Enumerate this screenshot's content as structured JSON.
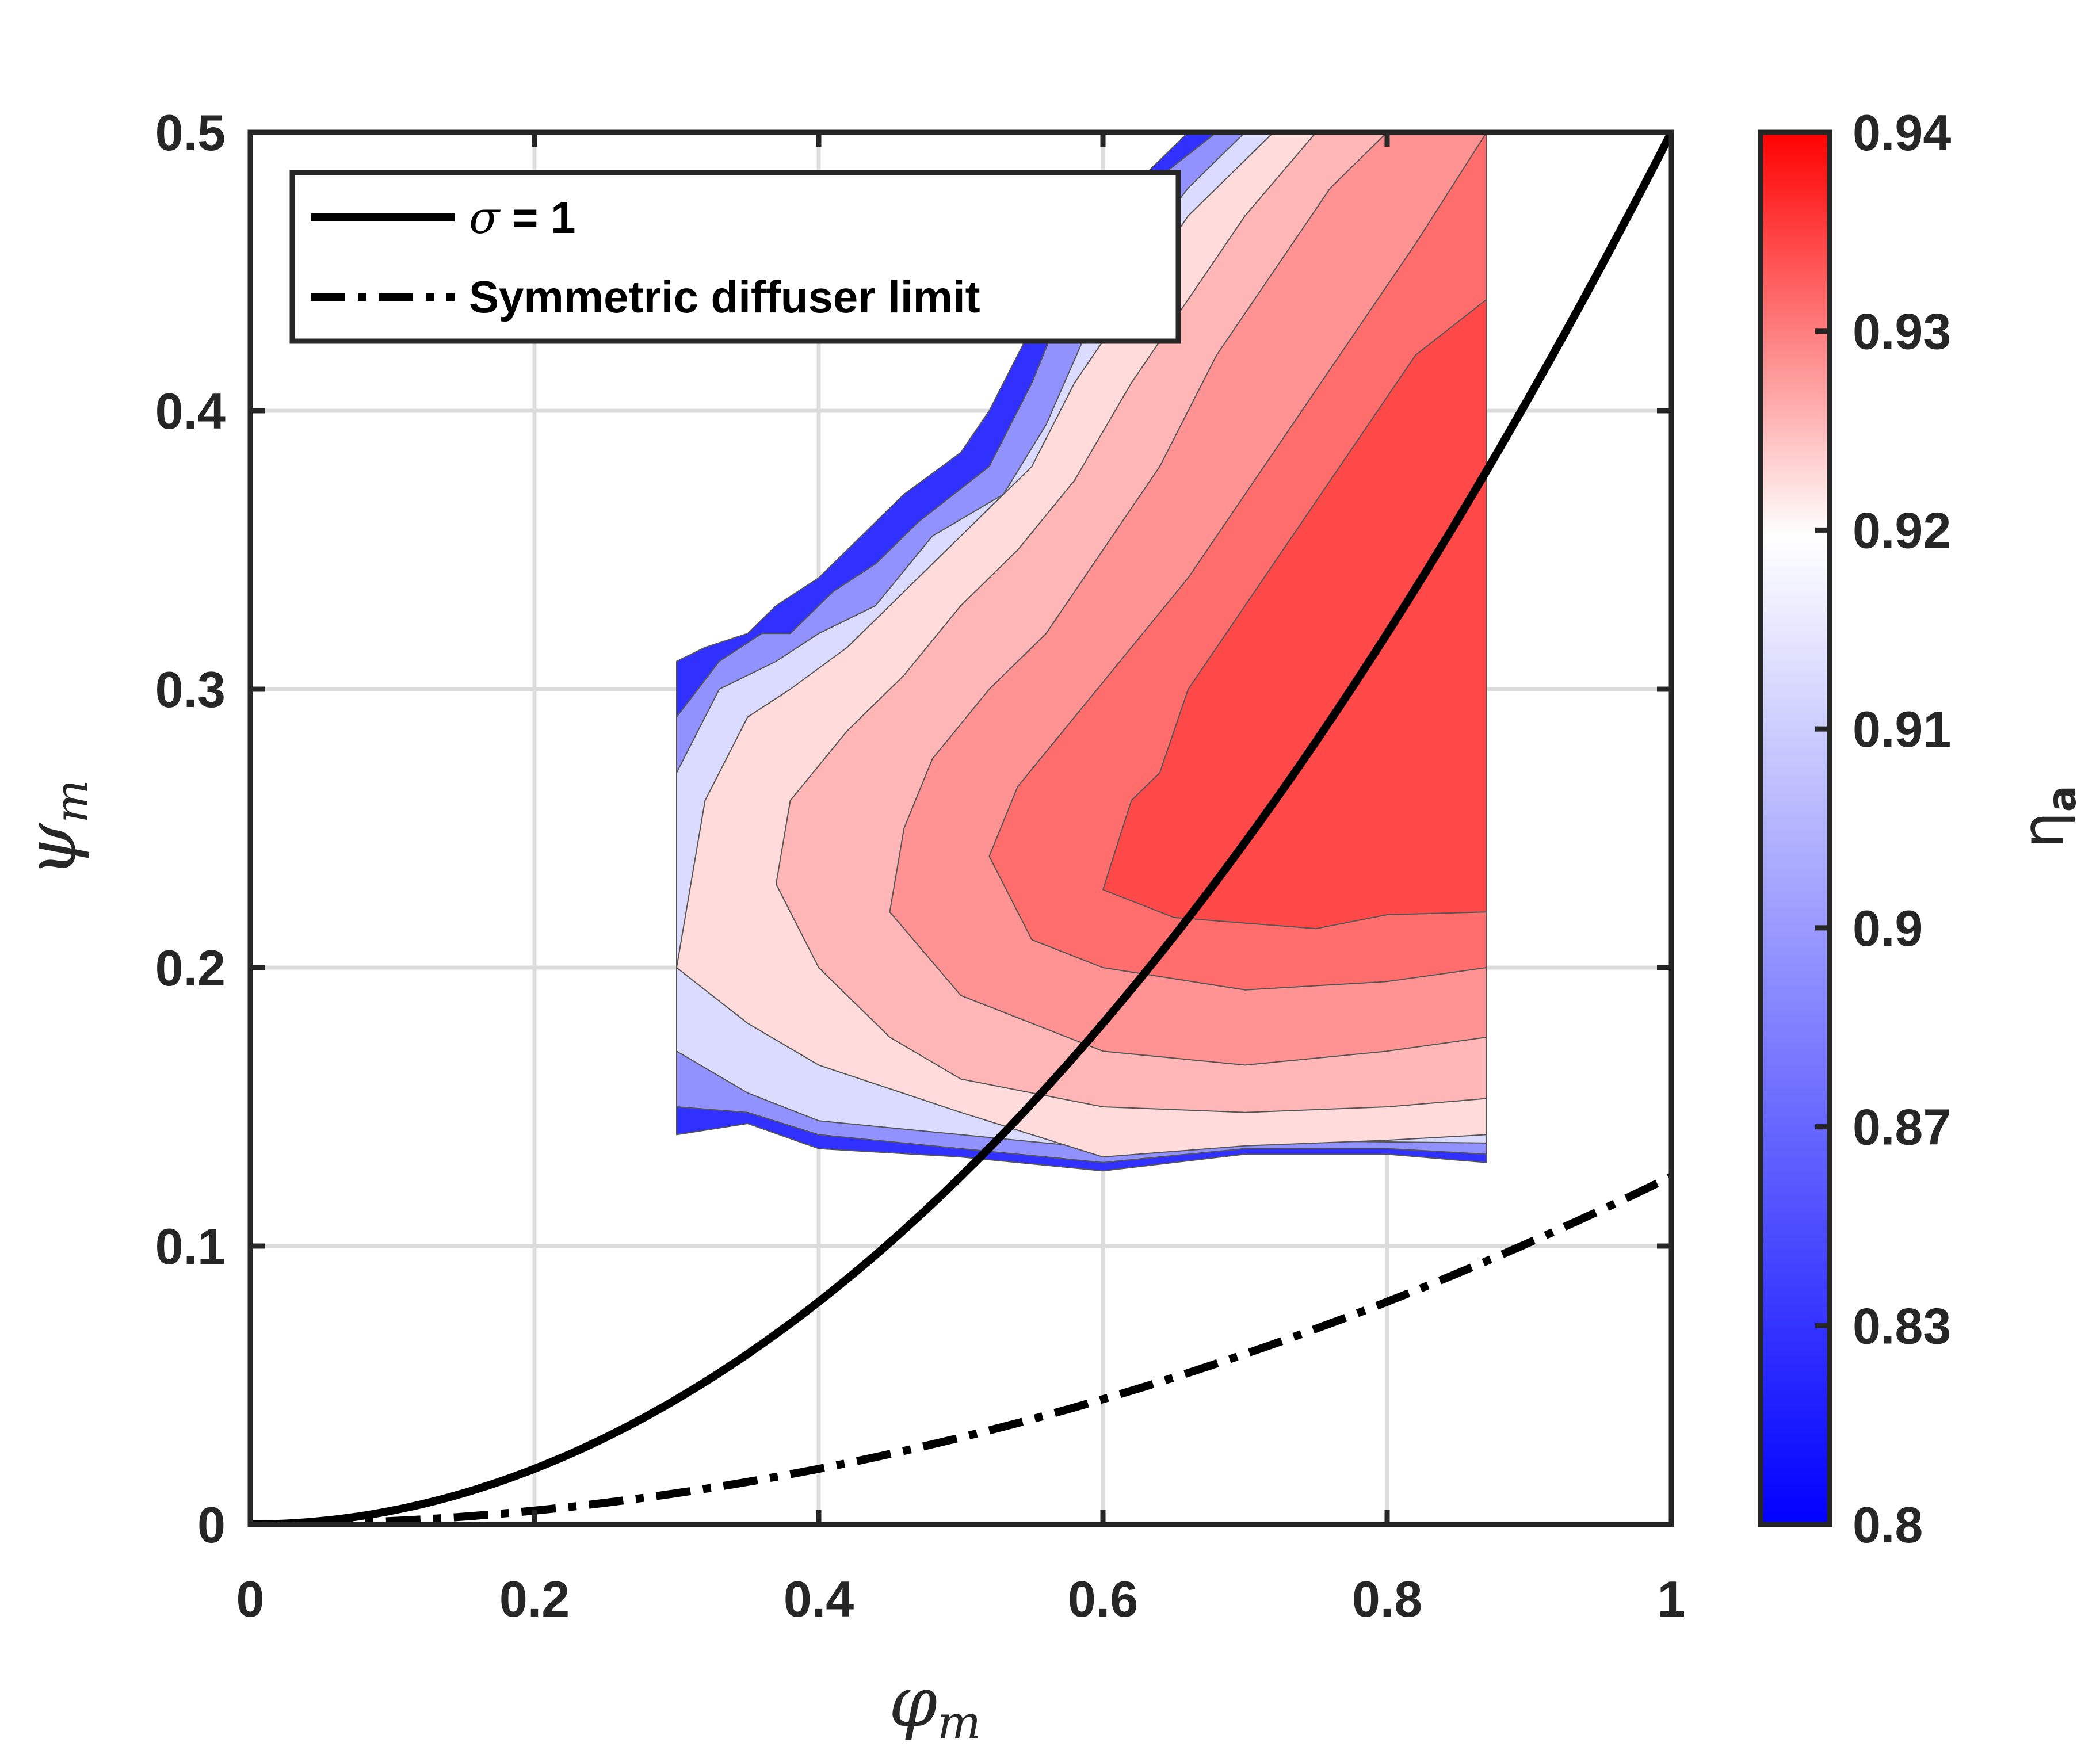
{
  "chart_data": {
    "type": "contour",
    "xlabel": {
      "main": "φ",
      "sub": "m"
    },
    "ylabel": {
      "main": "ψ",
      "sub": "m"
    },
    "xlim": [
      0,
      1
    ],
    "ylim": [
      0,
      0.5
    ],
    "xticks": [
      "0",
      "0.2",
      "0.4",
      "0.6",
      "0.8",
      "1"
    ],
    "yticks": [
      "0",
      "0.1",
      "0.2",
      "0.3",
      "0.4",
      "0.5"
    ],
    "grid": true,
    "legend": {
      "placement": "top-left",
      "entries": [
        {
          "symbol": "σ",
          "text": " = 1",
          "style": "solid"
        },
        {
          "symbol": "",
          "text": "Symmetric diffuser limit",
          "style": "dash-dot"
        }
      ]
    },
    "series": [
      {
        "style": "solid",
        "formula": "y = 0.5 * x^2"
      },
      {
        "style": "dash-dot",
        "formula": "y = 0.125 * x^2"
      }
    ],
    "colorbar": {
      "label": {
        "main": "η",
        "sub": "a"
      },
      "range": [
        0.8,
        0.94
      ],
      "ticks": [
        "0.8",
        "0.83",
        "0.87",
        "0.9",
        "0.91",
        "0.92",
        "0.93",
        "0.94"
      ],
      "colors": {
        "low": "#0000ff",
        "mid": "#ffffff",
        "high": "#ff0000"
      }
    },
    "contour_regions": [
      {
        "eta": 0.82,
        "outline": [
          [
            0.3,
            0.31
          ],
          [
            0.32,
            0.315
          ],
          [
            0.35,
            0.32
          ],
          [
            0.37,
            0.33
          ],
          [
            0.4,
            0.34
          ],
          [
            0.43,
            0.355
          ],
          [
            0.46,
            0.37
          ],
          [
            0.5,
            0.385
          ],
          [
            0.52,
            0.4
          ],
          [
            0.54,
            0.42
          ],
          [
            0.57,
            0.45
          ],
          [
            0.6,
            0.47
          ],
          [
            0.63,
            0.485
          ],
          [
            0.66,
            0.5
          ],
          [
            0.87,
            0.5
          ],
          [
            0.87,
            0.13
          ],
          [
            0.8,
            0.133
          ],
          [
            0.7,
            0.133
          ],
          [
            0.6,
            0.127
          ],
          [
            0.5,
            0.132
          ],
          [
            0.4,
            0.135
          ],
          [
            0.35,
            0.144
          ],
          [
            0.3,
            0.14
          ]
        ]
      },
      {
        "eta": 0.86,
        "outline": [
          [
            0.3,
            0.29
          ],
          [
            0.33,
            0.31
          ],
          [
            0.36,
            0.32
          ],
          [
            0.38,
            0.32
          ],
          [
            0.41,
            0.335
          ],
          [
            0.44,
            0.345
          ],
          [
            0.47,
            0.36
          ],
          [
            0.52,
            0.38
          ],
          [
            0.55,
            0.41
          ],
          [
            0.57,
            0.435
          ],
          [
            0.6,
            0.455
          ],
          [
            0.63,
            0.48
          ],
          [
            0.68,
            0.5
          ],
          [
            0.87,
            0.5
          ],
          [
            0.87,
            0.133
          ],
          [
            0.8,
            0.135
          ],
          [
            0.7,
            0.135
          ],
          [
            0.6,
            0.13
          ],
          [
            0.5,
            0.135
          ],
          [
            0.4,
            0.14
          ],
          [
            0.35,
            0.148
          ],
          [
            0.3,
            0.15
          ]
        ]
      },
      {
        "eta": 0.89,
        "outline": [
          [
            0.3,
            0.27
          ],
          [
            0.33,
            0.3
          ],
          [
            0.37,
            0.31
          ],
          [
            0.4,
            0.32
          ],
          [
            0.44,
            0.33
          ],
          [
            0.48,
            0.355
          ],
          [
            0.53,
            0.37
          ],
          [
            0.56,
            0.395
          ],
          [
            0.59,
            0.43
          ],
          [
            0.63,
            0.46
          ],
          [
            0.66,
            0.48
          ],
          [
            0.7,
            0.5
          ],
          [
            0.87,
            0.5
          ],
          [
            0.87,
            0.137
          ],
          [
            0.7,
            0.138
          ],
          [
            0.6,
            0.135
          ],
          [
            0.5,
            0.14
          ],
          [
            0.4,
            0.145
          ],
          [
            0.35,
            0.155
          ],
          [
            0.3,
            0.17
          ]
        ]
      },
      {
        "eta": 0.91,
        "outline": [
          [
            0.3,
            0.2
          ],
          [
            0.32,
            0.26
          ],
          [
            0.35,
            0.29
          ],
          [
            0.38,
            0.3
          ],
          [
            0.42,
            0.315
          ],
          [
            0.47,
            0.34
          ],
          [
            0.51,
            0.36
          ],
          [
            0.55,
            0.38
          ],
          [
            0.58,
            0.41
          ],
          [
            0.62,
            0.44
          ],
          [
            0.66,
            0.47
          ],
          [
            0.72,
            0.5
          ],
          [
            0.87,
            0.5
          ],
          [
            0.87,
            0.14
          ],
          [
            0.8,
            0.138
          ],
          [
            0.7,
            0.136
          ],
          [
            0.6,
            0.132
          ],
          [
            0.5,
            0.148
          ],
          [
            0.4,
            0.165
          ],
          [
            0.35,
            0.18
          ]
        ]
      },
      {
        "eta": 0.915,
        "outline": [
          [
            0.37,
            0.23
          ],
          [
            0.38,
            0.26
          ],
          [
            0.42,
            0.285
          ],
          [
            0.46,
            0.305
          ],
          [
            0.5,
            0.33
          ],
          [
            0.54,
            0.35
          ],
          [
            0.58,
            0.375
          ],
          [
            0.62,
            0.41
          ],
          [
            0.66,
            0.44
          ],
          [
            0.7,
            0.47
          ],
          [
            0.75,
            0.5
          ],
          [
            0.87,
            0.5
          ],
          [
            0.87,
            0.153
          ],
          [
            0.8,
            0.15
          ],
          [
            0.7,
            0.148
          ],
          [
            0.6,
            0.15
          ],
          [
            0.5,
            0.16
          ],
          [
            0.45,
            0.175
          ],
          [
            0.4,
            0.2
          ]
        ]
      },
      {
        "eta": 0.92,
        "outline": [
          [
            0.45,
            0.22
          ],
          [
            0.46,
            0.25
          ],
          [
            0.48,
            0.275
          ],
          [
            0.52,
            0.3
          ],
          [
            0.56,
            0.32
          ],
          [
            0.6,
            0.35
          ],
          [
            0.64,
            0.38
          ],
          [
            0.68,
            0.42
          ],
          [
            0.72,
            0.45
          ],
          [
            0.76,
            0.48
          ],
          [
            0.8,
            0.5
          ],
          [
            0.87,
            0.5
          ],
          [
            0.87,
            0.175
          ],
          [
            0.8,
            0.17
          ],
          [
            0.7,
            0.165
          ],
          [
            0.6,
            0.17
          ],
          [
            0.5,
            0.19
          ]
        ]
      },
      {
        "eta": 0.925,
        "outline": [
          [
            0.52,
            0.24
          ],
          [
            0.54,
            0.265
          ],
          [
            0.58,
            0.29
          ],
          [
            0.62,
            0.315
          ],
          [
            0.66,
            0.34
          ],
          [
            0.7,
            0.37
          ],
          [
            0.74,
            0.4
          ],
          [
            0.78,
            0.43
          ],
          [
            0.82,
            0.46
          ],
          [
            0.87,
            0.5
          ],
          [
            0.87,
            0.2
          ],
          [
            0.8,
            0.195
          ],
          [
            0.7,
            0.192
          ],
          [
            0.6,
            0.2
          ],
          [
            0.55,
            0.21
          ]
        ]
      },
      {
        "eta": 0.93,
        "outline": [
          [
            0.6,
            0.228
          ],
          [
            0.62,
            0.26
          ],
          [
            0.64,
            0.27
          ],
          [
            0.66,
            0.3
          ],
          [
            0.7,
            0.33
          ],
          [
            0.74,
            0.36
          ],
          [
            0.78,
            0.39
          ],
          [
            0.82,
            0.42
          ],
          [
            0.87,
            0.44
          ],
          [
            0.87,
            0.22
          ],
          [
            0.8,
            0.219
          ],
          [
            0.75,
            0.214
          ],
          [
            0.7,
            0.216
          ],
          [
            0.65,
            0.218
          ]
        ]
      }
    ]
  }
}
